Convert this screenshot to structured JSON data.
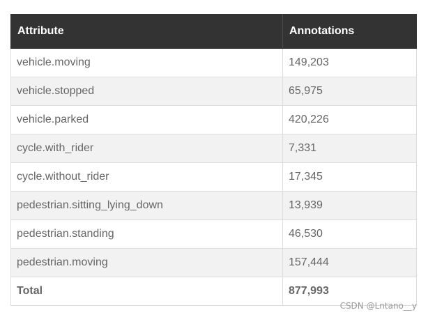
{
  "table": {
    "headers": [
      "Attribute",
      "Annotations"
    ],
    "rows": [
      [
        "vehicle.moving",
        "149,203"
      ],
      [
        "vehicle.stopped",
        "65,975"
      ],
      [
        "vehicle.parked",
        "420,226"
      ],
      [
        "cycle.with_rider",
        "7,331"
      ],
      [
        "cycle.without_rider",
        "17,345"
      ],
      [
        "pedestrian.sitting_lying_down",
        "13,939"
      ],
      [
        "pedestrian.standing",
        "46,530"
      ],
      [
        "pedestrian.moving",
        "157,444"
      ],
      [
        "Total",
        "877,993"
      ]
    ]
  },
  "watermark": "CSDN @Lntano__y"
}
